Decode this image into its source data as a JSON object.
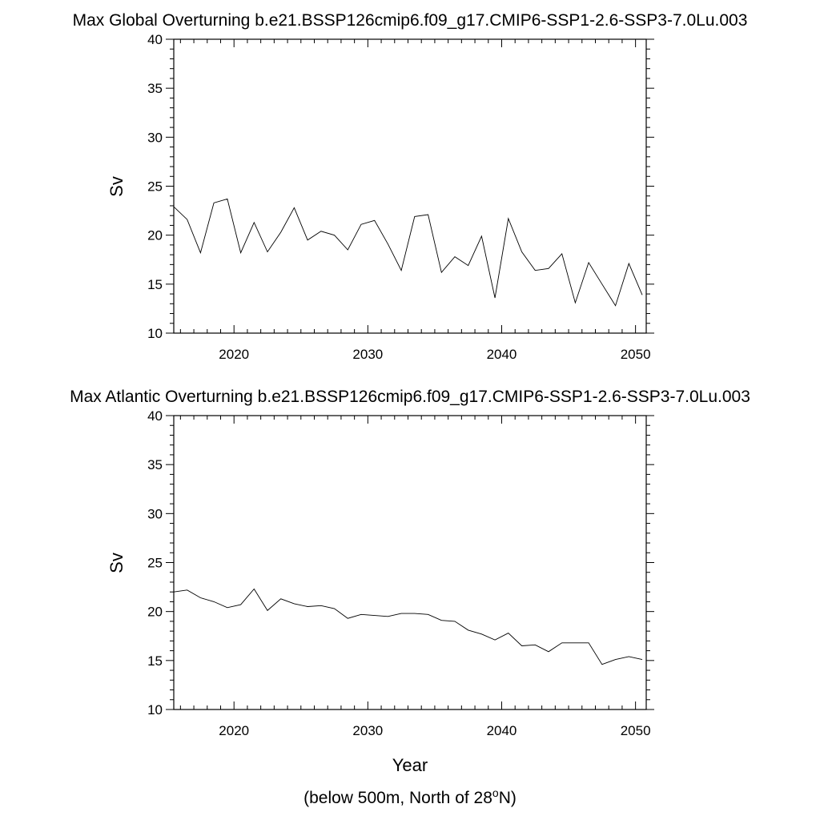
{
  "chart_data": [
    {
      "type": "line",
      "title": "Max Global Overturning b.e21.BSSP126cmip6.f09_g17.CMIP6-SSP1-2.6-SSP3-7.0Lu.003",
      "xlabel": "",
      "ylabel": "Sv",
      "xlim": [
        2015.5,
        2050.8
      ],
      "ylim": [
        10,
        40
      ],
      "x_ticks": [
        "2020",
        "2030",
        "2040",
        "2050"
      ],
      "y_ticks": [
        "10",
        "15",
        "20",
        "25",
        "30",
        "35",
        "40"
      ],
      "grid": false,
      "x": [
        2015.5,
        2016.5,
        2017.5,
        2018.5,
        2019.5,
        2020.5,
        2021.5,
        2022.5,
        2023.5,
        2024.5,
        2025.5,
        2026.5,
        2027.5,
        2028.5,
        2029.5,
        2030.5,
        2031.5,
        2032.5,
        2033.5,
        2034.5,
        2035.5,
        2036.5,
        2037.5,
        2038.5,
        2039.5,
        2040.5,
        2041.5,
        2042.5,
        2043.5,
        2044.5,
        2045.5,
        2046.5,
        2047.5,
        2048.5,
        2049.5,
        2050.5
      ],
      "series": [
        {
          "values": [
            22.9,
            21.6,
            18.2,
            23.3,
            23.7,
            18.2,
            21.3,
            18.3,
            20.3,
            22.8,
            19.5,
            20.4,
            20.0,
            18.5,
            21.1,
            21.5,
            19.1,
            16.4,
            21.9,
            22.1,
            16.2,
            17.8,
            16.9,
            19.9,
            13.6,
            21.7,
            18.3,
            16.4,
            16.6,
            18.1,
            13.1,
            17.2,
            15.0,
            12.8,
            17.1,
            13.9
          ]
        }
      ]
    },
    {
      "type": "line",
      "title": "Max Atlantic Overturning b.e21.BSSP126cmip6.f09_g17.CMIP6-SSP1-2.6-SSP3-7.0Lu.003",
      "xlabel": "Year",
      "ylabel": "Sv",
      "xlim": [
        2015.5,
        2050.8
      ],
      "ylim": [
        10,
        40
      ],
      "x_ticks": [
        "2020",
        "2030",
        "2040",
        "2050"
      ],
      "y_ticks": [
        "10",
        "15",
        "20",
        "25",
        "30",
        "35",
        "40"
      ],
      "grid": false,
      "x": [
        2015.5,
        2016.5,
        2017.5,
        2018.5,
        2019.5,
        2020.5,
        2021.5,
        2022.5,
        2023.5,
        2024.5,
        2025.5,
        2026.5,
        2027.5,
        2028.5,
        2029.5,
        2030.5,
        2031.5,
        2032.5,
        2033.5,
        2034.5,
        2035.5,
        2036.5,
        2037.5,
        2038.5,
        2039.5,
        2040.5,
        2041.5,
        2042.5,
        2043.5,
        2044.5,
        2045.5,
        2046.5,
        2047.5,
        2048.5,
        2049.5,
        2050.5
      ],
      "series": [
        {
          "values": [
            22.0,
            22.2,
            21.4,
            21.0,
            20.4,
            20.7,
            22.3,
            20.1,
            21.3,
            20.8,
            20.5,
            20.6,
            20.3,
            19.3,
            19.7,
            19.6,
            19.5,
            19.8,
            19.8,
            19.7,
            19.1,
            19.0,
            18.1,
            17.7,
            17.1,
            17.8,
            16.5,
            16.6,
            15.9,
            16.8,
            16.8,
            16.8,
            14.6,
            15.1,
            15.4,
            15.1
          ]
        }
      ]
    }
  ],
  "footnote": {
    "before": "(below 500m, North of 28",
    "sup": "o",
    "after": "N)"
  }
}
